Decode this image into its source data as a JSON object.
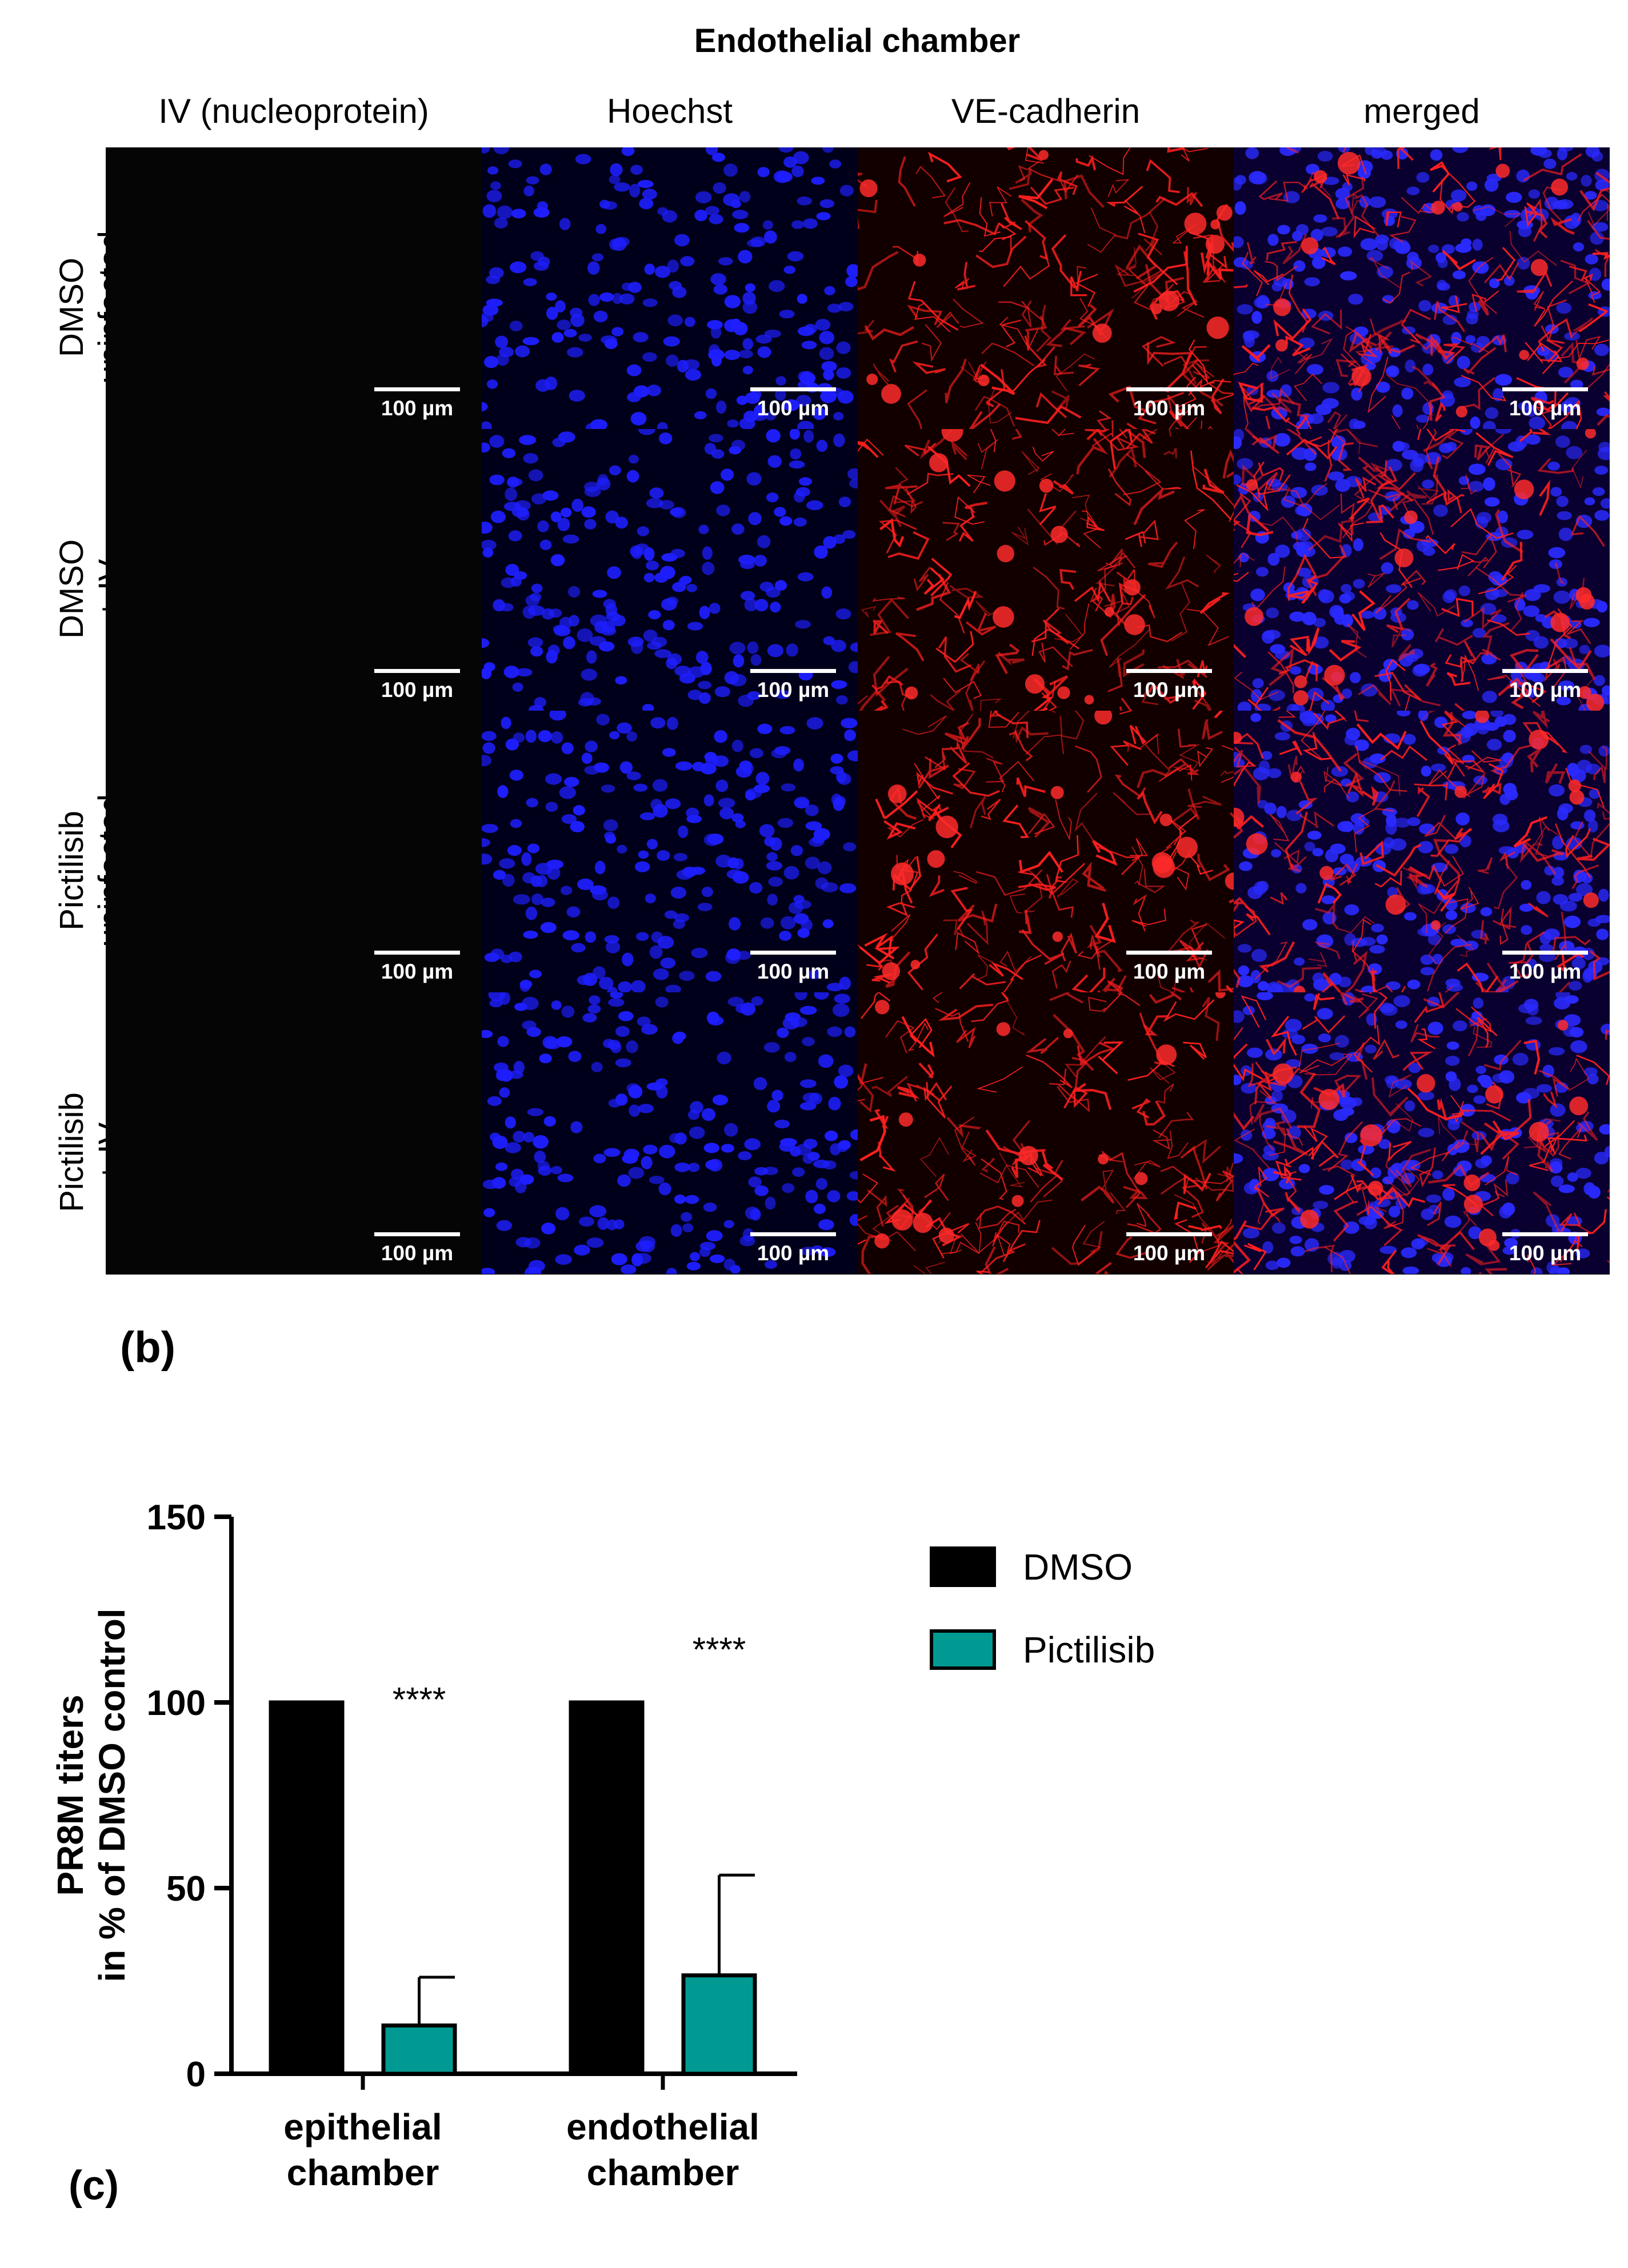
{
  "panel_b": {
    "title": "Endothelial chamber",
    "columns": [
      "IV (nucleoprotein)",
      "Hoechst",
      "VE-cadherin",
      "merged"
    ],
    "rows": [
      {
        "line1": "DMSO",
        "line2": "uninfected"
      },
      {
        "line1": "DMSO",
        "line2": "+ IV"
      },
      {
        "line1": "Pictilisib",
        "line2": "uninfected"
      },
      {
        "line1": "Pictilisib",
        "line2": "+ IV"
      }
    ],
    "scale_label": "100 µm",
    "label": "(b)",
    "colors": {
      "iv": "#050505",
      "hoechst": "#1a1aff",
      "vecadherin": "#ff1a1a"
    }
  },
  "panel_c": {
    "label": "(c)"
  },
  "chart_data": {
    "type": "bar",
    "title": "",
    "ylabel_line1": "PR8M titers",
    "ylabel_line2": "in % of DMSO control",
    "ylim": [
      0,
      150
    ],
    "yticks": [
      0,
      50,
      100,
      150
    ],
    "categories": [
      {
        "line1": "epithelial",
        "line2": "chamber"
      },
      {
        "line1": "endothelial",
        "line2": "chamber"
      }
    ],
    "series": [
      {
        "name": "DMSO",
        "color": "#000000",
        "values": [
          100,
          100
        ],
        "errors": [
          0,
          0
        ]
      },
      {
        "name": "Pictilisib",
        "color": "#009a93",
        "values": [
          13,
          26.5
        ],
        "errors": [
          13,
          27
        ]
      }
    ],
    "annotations": [
      "****",
      "****"
    ],
    "legend_position": "top-right"
  }
}
